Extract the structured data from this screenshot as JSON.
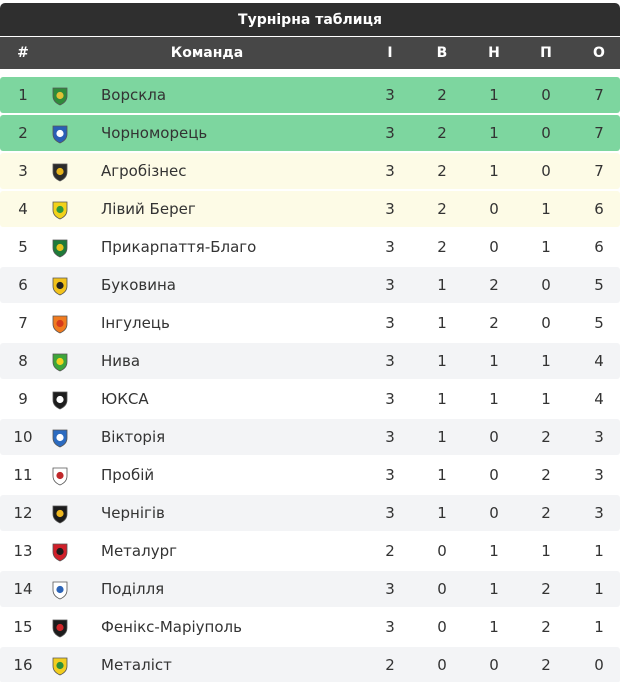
{
  "title": "Турнірна таблиця",
  "headers": {
    "pos": "#",
    "team": "Команда",
    "i": "І",
    "v": "В",
    "n": "Н",
    "p": "П",
    "o": "О"
  },
  "colors": {
    "promotion": "#7dd69f",
    "playoff": "#fdfbe6",
    "odd": "#ffffff",
    "even": "#f3f4f6"
  },
  "rows": [
    {
      "pos": "1",
      "team": "Ворскла",
      "i": "3",
      "v": "2",
      "n": "1",
      "p": "0",
      "o": "7",
      "zone": "promotion",
      "logo": "vorskla-logo-icon",
      "c1": "#2e8b3a",
      "c2": "#e0c036"
    },
    {
      "pos": "2",
      "team": "Чорноморець",
      "i": "3",
      "v": "2",
      "n": "1",
      "p": "0",
      "o": "7",
      "zone": "promotion",
      "logo": "chornomorets-logo-icon",
      "c1": "#2a5fb5",
      "c2": "#ffffff"
    },
    {
      "pos": "3",
      "team": "Агробізнес",
      "i": "3",
      "v": "2",
      "n": "1",
      "p": "0",
      "o": "7",
      "zone": "playoff",
      "logo": "agrobiznes-logo-icon",
      "c1": "#2b2b2b",
      "c2": "#e7b41c"
    },
    {
      "pos": "4",
      "team": "Лівий Берег",
      "i": "3",
      "v": "2",
      "n": "0",
      "p": "1",
      "o": "6",
      "zone": "playoff",
      "logo": "livyi-bereh-logo-icon",
      "c1": "#f2d21a",
      "c2": "#2e9a3d"
    },
    {
      "pos": "5",
      "team": "Прикарпаття-Благо",
      "i": "3",
      "v": "2",
      "n": "0",
      "p": "1",
      "o": "6",
      "zone": "odd",
      "logo": "prykarpattia-logo-icon",
      "c1": "#1f7a3a",
      "c2": "#e8c21d"
    },
    {
      "pos": "6",
      "team": "Буковина",
      "i": "3",
      "v": "1",
      "n": "2",
      "p": "0",
      "o": "5",
      "zone": "even",
      "logo": "bukovyna-logo-icon",
      "c1": "#f2c21b",
      "c2": "#222222"
    },
    {
      "pos": "7",
      "team": "Інгулець",
      "i": "3",
      "v": "1",
      "n": "2",
      "p": "0",
      "o": "5",
      "zone": "odd",
      "logo": "inhulets-logo-icon",
      "c1": "#f07b1f",
      "c2": "#d63a1c"
    },
    {
      "pos": "8",
      "team": "Нива",
      "i": "3",
      "v": "1",
      "n": "1",
      "p": "1",
      "o": "4",
      "zone": "even",
      "logo": "nyva-logo-icon",
      "c1": "#3da53a",
      "c2": "#f3d21d"
    },
    {
      "pos": "9",
      "team": "ЮКСА",
      "i": "3",
      "v": "1",
      "n": "1",
      "p": "1",
      "o": "4",
      "zone": "odd",
      "logo": "yuksa-logo-icon",
      "c1": "#1d1d1d",
      "c2": "#ffffff"
    },
    {
      "pos": "10",
      "team": "Вікторія",
      "i": "3",
      "v": "1",
      "n": "0",
      "p": "2",
      "o": "3",
      "zone": "even",
      "logo": "viktoriia-logo-icon",
      "c1": "#2c6bc0",
      "c2": "#ffffff"
    },
    {
      "pos": "11",
      "team": "Пробій",
      "i": "3",
      "v": "1",
      "n": "0",
      "p": "2",
      "o": "3",
      "zone": "odd",
      "logo": "probii-logo-icon",
      "c1": "#ffffff",
      "c2": "#c0282b"
    },
    {
      "pos": "12",
      "team": "Чернігів",
      "i": "3",
      "v": "1",
      "n": "0",
      "p": "2",
      "o": "3",
      "zone": "even",
      "logo": "chernihiv-logo-icon",
      "c1": "#1c1c1c",
      "c2": "#f0b820"
    },
    {
      "pos": "13",
      "team": "Металург",
      "i": "2",
      "v": "0",
      "n": "1",
      "p": "1",
      "o": "1",
      "zone": "odd",
      "logo": "metalurh-logo-icon",
      "c1": "#d0202a",
      "c2": "#1c1c1c"
    },
    {
      "pos": "14",
      "team": "Поділля",
      "i": "3",
      "v": "0",
      "n": "1",
      "p": "2",
      "o": "1",
      "zone": "even",
      "logo": "podillia-logo-icon",
      "c1": "#ffffff",
      "c2": "#2c64b8"
    },
    {
      "pos": "15",
      "team": "Фенікс-Маріуполь",
      "i": "3",
      "v": "0",
      "n": "1",
      "p": "2",
      "o": "1",
      "zone": "odd",
      "logo": "feniks-logo-icon",
      "c1": "#1c1c1c",
      "c2": "#d0262a"
    },
    {
      "pos": "16",
      "team": "Металіст",
      "i": "2",
      "v": "0",
      "n": "0",
      "p": "2",
      "o": "0",
      "zone": "even",
      "logo": "metalist-logo-icon",
      "c1": "#f2cd1e",
      "c2": "#2b8f3a"
    }
  ]
}
